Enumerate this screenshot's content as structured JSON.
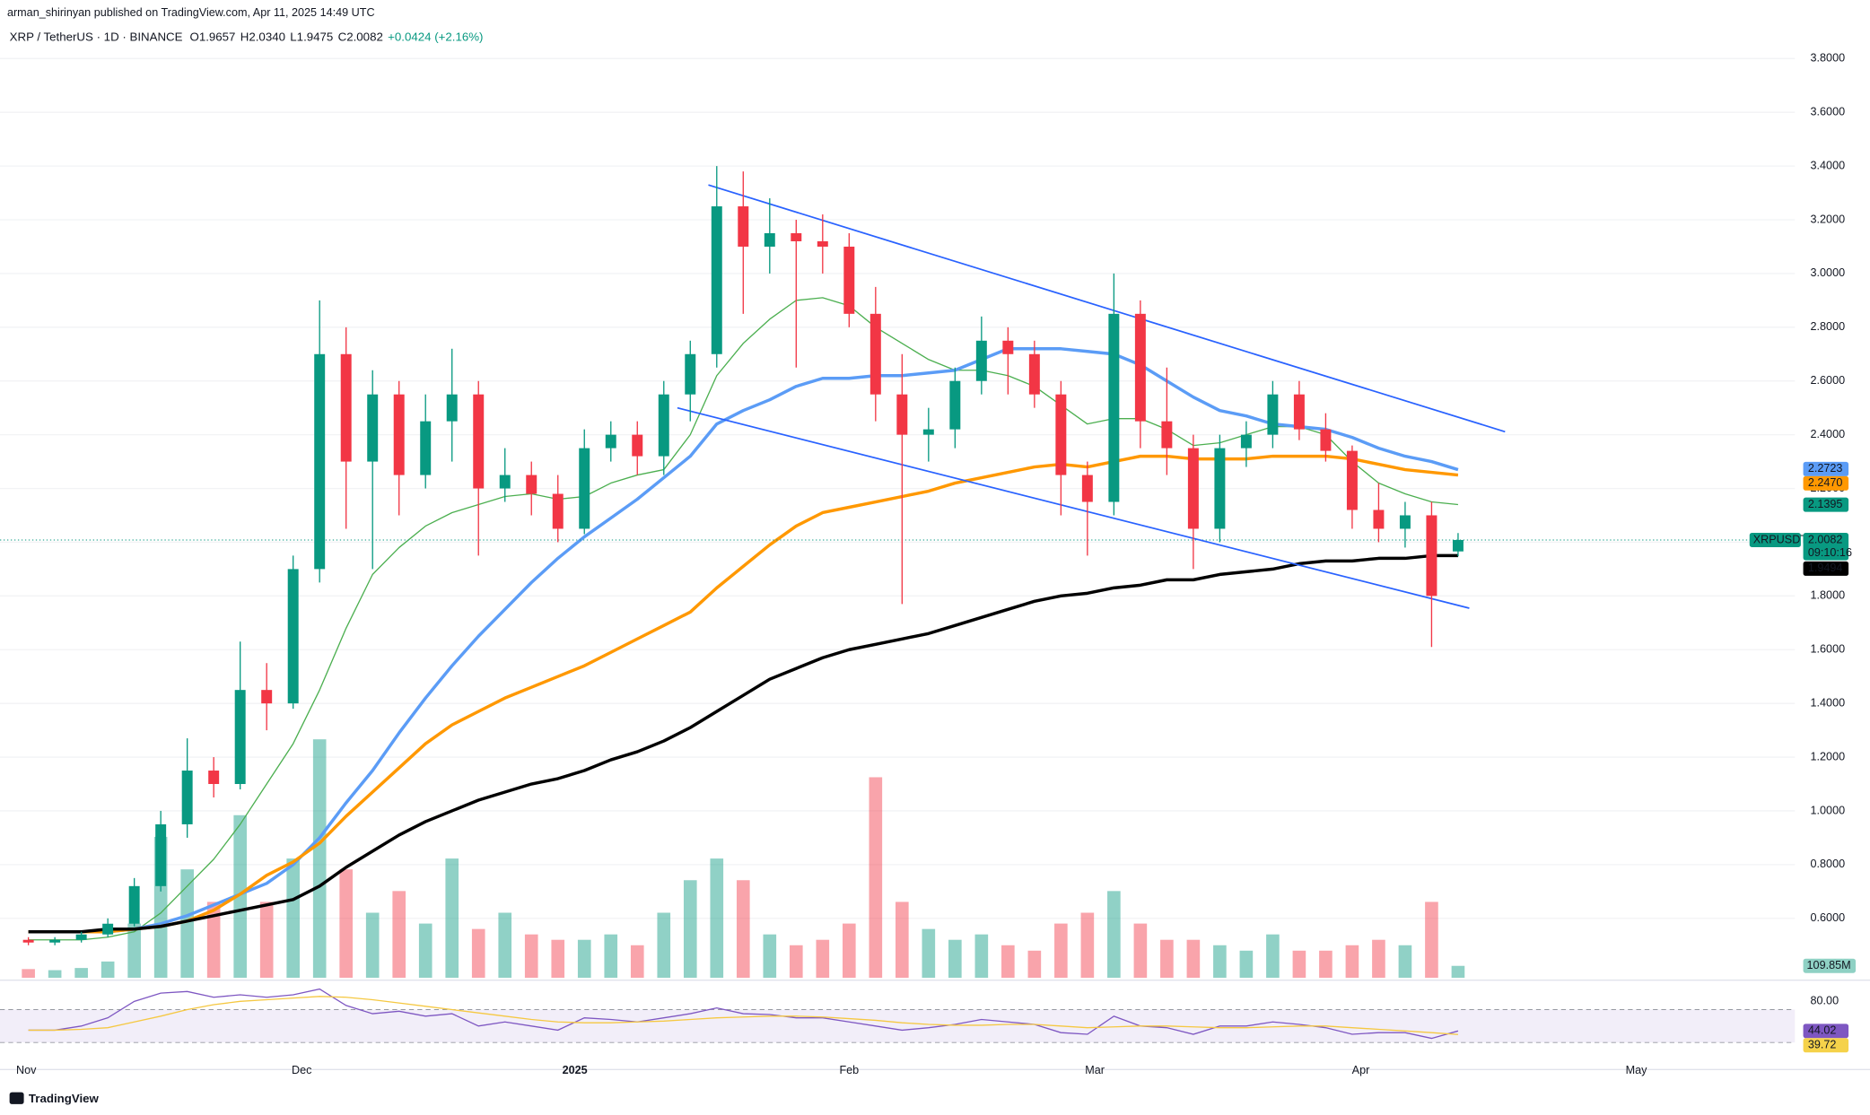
{
  "header": {
    "publisher": "arman_shirinyan published on TradingView.com, Apr 11, 2025 14:49 UTC",
    "footer": "TradingView"
  },
  "chart_data": {
    "type": "candlestick",
    "title": "XRP / TetherUS · 1D · BINANCE",
    "ohlc_labels": [
      "O1.9657",
      "H2.0340",
      "L1.9475",
      "C2.0082"
    ],
    "change": "+0.0424 (+2.16%)",
    "x_labels": [
      "Nov",
      "Dec",
      "2025",
      "Feb",
      "Mar",
      "Apr",
      "May"
    ],
    "up_color": "#089981",
    "down_color": "#f23645",
    "ylim": [
      0.37,
      3.84
    ],
    "yticks": [
      {
        "value": 3.8,
        "label": "3.8000"
      },
      {
        "value": 3.6,
        "label": "3.6000"
      },
      {
        "value": 3.4,
        "label": "3.4000"
      },
      {
        "value": 3.2,
        "label": "3.2000"
      },
      {
        "value": 3.0,
        "label": "3.0000"
      },
      {
        "value": 2.8,
        "label": "2.8000"
      },
      {
        "value": 2.6,
        "label": "2.6000"
      },
      {
        "value": 2.4,
        "label": "2.4000"
      },
      {
        "value": 2.2,
        "label": "2.2000"
      },
      {
        "value": 2.0,
        "label": "2.0000"
      },
      {
        "value": 1.8,
        "label": "1.8000"
      },
      {
        "value": 1.6,
        "label": "1.6000"
      },
      {
        "value": 1.4,
        "label": "1.4000"
      },
      {
        "value": 1.2,
        "label": "1.2000"
      },
      {
        "value": 1.0,
        "label": "1.0000"
      },
      {
        "value": 0.8,
        "label": "0.8000"
      },
      {
        "value": 0.6,
        "label": "0.6000"
      }
    ],
    "grid": true,
    "candles": [
      [
        0.52,
        0.53,
        0.5,
        0.51
      ],
      [
        0.51,
        0.53,
        0.5,
        0.52
      ],
      [
        0.52,
        0.55,
        0.51,
        0.54
      ],
      [
        0.54,
        0.6,
        0.53,
        0.58
      ],
      [
        0.58,
        0.75,
        0.57,
        0.72
      ],
      [
        0.72,
        1.0,
        0.7,
        0.95
      ],
      [
        0.95,
        1.27,
        0.9,
        1.15
      ],
      [
        1.15,
        1.2,
        1.05,
        1.1
      ],
      [
        1.1,
        1.63,
        1.08,
        1.45
      ],
      [
        1.45,
        1.55,
        1.3,
        1.4
      ],
      [
        1.4,
        1.95,
        1.38,
        1.9
      ],
      [
        1.9,
        2.9,
        1.85,
        2.7
      ],
      [
        2.7,
        2.8,
        2.05,
        2.3
      ],
      [
        2.3,
        2.64,
        1.9,
        2.55
      ],
      [
        2.55,
        2.6,
        2.1,
        2.25
      ],
      [
        2.25,
        2.55,
        2.2,
        2.45
      ],
      [
        2.45,
        2.72,
        2.3,
        2.55
      ],
      [
        2.55,
        2.6,
        1.95,
        2.2
      ],
      [
        2.2,
        2.35,
        2.15,
        2.25
      ],
      [
        2.25,
        2.3,
        2.1,
        2.18
      ],
      [
        2.18,
        2.25,
        2.0,
        2.05
      ],
      [
        2.05,
        2.42,
        2.03,
        2.35
      ],
      [
        2.35,
        2.45,
        2.3,
        2.4
      ],
      [
        2.4,
        2.45,
        2.25,
        2.32
      ],
      [
        2.32,
        2.6,
        2.25,
        2.55
      ],
      [
        2.55,
        2.75,
        2.45,
        2.7
      ],
      [
        2.7,
        3.4,
        2.65,
        3.25
      ],
      [
        3.25,
        3.38,
        2.85,
        3.1
      ],
      [
        3.1,
        3.28,
        3.0,
        3.15
      ],
      [
        3.15,
        3.2,
        2.65,
        3.12
      ],
      [
        3.12,
        3.22,
        3.0,
        3.1
      ],
      [
        3.1,
        3.15,
        2.8,
        2.85
      ],
      [
        2.85,
        2.95,
        2.45,
        2.55
      ],
      [
        2.55,
        2.7,
        1.77,
        2.4
      ],
      [
        2.4,
        2.5,
        2.3,
        2.42
      ],
      [
        2.42,
        2.65,
        2.35,
        2.6
      ],
      [
        2.6,
        2.84,
        2.55,
        2.75
      ],
      [
        2.75,
        2.8,
        2.55,
        2.7
      ],
      [
        2.7,
        2.75,
        2.5,
        2.55
      ],
      [
        2.55,
        2.6,
        2.1,
        2.25
      ],
      [
        2.25,
        2.3,
        1.95,
        2.15
      ],
      [
        2.15,
        3.0,
        2.1,
        2.85
      ],
      [
        2.85,
        2.9,
        2.35,
        2.45
      ],
      [
        2.45,
        2.65,
        2.25,
        2.35
      ],
      [
        2.35,
        2.4,
        1.9,
        2.05
      ],
      [
        2.05,
        2.4,
        2.0,
        2.35
      ],
      [
        2.35,
        2.45,
        2.28,
        2.4
      ],
      [
        2.4,
        2.6,
        2.35,
        2.55
      ],
      [
        2.55,
        2.6,
        2.38,
        2.42
      ],
      [
        2.42,
        2.48,
        2.3,
        2.34
      ],
      [
        2.34,
        2.36,
        2.05,
        2.12
      ],
      [
        2.12,
        2.22,
        2.0,
        2.05
      ],
      [
        2.05,
        2.15,
        1.98,
        2.1
      ],
      [
        2.1,
        2.15,
        1.61,
        1.8
      ],
      [
        1.9657,
        2.034,
        1.9475,
        2.0082
      ]
    ],
    "lines": [
      {
        "color": "#4caf50",
        "values": [
          0.52,
          0.52,
          0.52,
          0.53,
          0.55,
          0.62,
          0.72,
          0.82,
          0.95,
          1.1,
          1.25,
          1.45,
          1.68,
          1.88,
          1.98,
          2.06,
          2.11,
          2.14,
          2.17,
          2.18,
          2.16,
          2.17,
          2.22,
          2.25,
          2.27,
          2.4,
          2.62,
          2.74,
          2.83,
          2.9,
          2.91,
          2.88,
          2.8,
          2.74,
          2.68,
          2.64,
          2.64,
          2.62,
          2.58,
          2.51,
          2.44,
          2.46,
          2.46,
          2.42,
          2.36,
          2.37,
          2.4,
          2.43,
          2.43,
          2.4,
          2.3,
          2.22,
          2.18,
          2.15,
          2.14
        ]
      },
      {
        "color": "#5b9cf6",
        "values": [
          0.55,
          0.55,
          0.55,
          0.55,
          0.56,
          0.58,
          0.61,
          0.65,
          0.69,
          0.73,
          0.8,
          0.9,
          1.03,
          1.15,
          1.29,
          1.42,
          1.54,
          1.65,
          1.75,
          1.85,
          1.94,
          2.02,
          2.09,
          2.16,
          2.24,
          2.32,
          2.44,
          2.49,
          2.53,
          2.58,
          2.61,
          2.61,
          2.62,
          2.62,
          2.63,
          2.64,
          2.68,
          2.72,
          2.72,
          2.72,
          2.71,
          2.7,
          2.66,
          2.6,
          2.54,
          2.49,
          2.47,
          2.44,
          2.43,
          2.42,
          2.39,
          2.35,
          2.32,
          2.3,
          2.27
        ]
      },
      {
        "color": "#ff9800",
        "values": [
          0.55,
          0.55,
          0.55,
          0.55,
          0.56,
          0.57,
          0.59,
          0.63,
          0.69,
          0.76,
          0.81,
          0.88,
          0.98,
          1.07,
          1.16,
          1.25,
          1.32,
          1.37,
          1.42,
          1.46,
          1.5,
          1.54,
          1.59,
          1.64,
          1.69,
          1.74,
          1.83,
          1.91,
          1.99,
          2.06,
          2.11,
          2.13,
          2.15,
          2.17,
          2.19,
          2.22,
          2.24,
          2.26,
          2.28,
          2.29,
          2.28,
          2.3,
          2.32,
          2.32,
          2.31,
          2.31,
          2.31,
          2.32,
          2.32,
          2.32,
          2.31,
          2.29,
          2.27,
          2.26,
          2.25
        ]
      },
      {
        "color": "#000000",
        "values": [
          0.55,
          0.55,
          0.55,
          0.56,
          0.56,
          0.57,
          0.59,
          0.61,
          0.63,
          0.65,
          0.67,
          0.72,
          0.79,
          0.85,
          0.91,
          0.96,
          1.0,
          1.04,
          1.07,
          1.1,
          1.12,
          1.15,
          1.19,
          1.22,
          1.26,
          1.31,
          1.37,
          1.43,
          1.49,
          1.53,
          1.57,
          1.6,
          1.62,
          1.64,
          1.66,
          1.69,
          1.72,
          1.75,
          1.78,
          1.8,
          1.81,
          1.83,
          1.84,
          1.86,
          1.86,
          1.88,
          1.89,
          1.9,
          1.92,
          1.93,
          1.93,
          1.94,
          1.94,
          1.95,
          1.95
        ]
      }
    ],
    "badges": [
      {
        "value": 2.2723,
        "label": "2.2723",
        "color": "#5b9cf6"
      },
      {
        "value": 2.247,
        "label": "2.2470",
        "color": "#ff9800"
      },
      {
        "value": 2.1395,
        "label": "2.1395",
        "color": "#089981"
      }
    ],
    "last_price": {
      "symbol": "XRPUSDT",
      "value": 2.0082,
      "label": "2.0082",
      "countdown": "09:10:16",
      "color": "#089981"
    },
    "ma_badge": {
      "value": 1.9494,
      "label": "1.9494",
      "color": "#000000"
    },
    "volume": {
      "values": [
        80,
        70,
        90,
        150,
        500,
        1300,
        1000,
        700,
        1500,
        700,
        1100,
        2200,
        1000,
        600,
        800,
        500,
        1100,
        450,
        600,
        400,
        350,
        350,
        400,
        300,
        600,
        900,
        1100,
        900,
        400,
        300,
        350,
        500,
        1850,
        700,
        450,
        350,
        400,
        300,
        250,
        500,
        600,
        800,
        500,
        350,
        350,
        300,
        250,
        400,
        250,
        250,
        300,
        350,
        300,
        700,
        109.85
      ],
      "ylim": [
        0,
        2200
      ],
      "last_label": "109.85M"
    },
    "rsi": {
      "values": [
        45,
        45,
        50,
        60,
        80,
        90,
        92,
        85,
        88,
        85,
        88,
        95,
        75,
        65,
        68,
        62,
        65,
        50,
        55,
        50,
        45,
        60,
        58,
        55,
        60,
        65,
        72,
        65,
        64,
        60,
        60,
        55,
        50,
        45,
        48,
        52,
        58,
        55,
        52,
        42,
        40,
        62,
        50,
        48,
        40,
        50,
        50,
        55,
        52,
        48,
        40,
        42,
        42,
        35,
        44.02
      ],
      "ma": [
        45,
        45,
        46,
        48,
        55,
        62,
        70,
        76,
        80,
        82,
        84,
        86,
        85,
        82,
        78,
        74,
        70,
        66,
        62,
        58,
        55,
        54,
        54,
        55,
        56,
        58,
        60,
        61,
        62,
        62,
        61,
        59,
        57,
        54,
        52,
        51,
        51,
        52,
        52,
        50,
        48,
        49,
        50,
        50,
        49,
        48,
        48,
        49,
        50,
        50,
        48,
        46,
        44,
        42,
        39.72
      ],
      "ylim": [
        0,
        100
      ],
      "yticks": [
        {
          "value": 80,
          "label": "80.00"
        }
      ],
      "bands": [
        30,
        70
      ],
      "color": "#7e57c2",
      "ma_color": "#f5c842",
      "badges": [
        {
          "value": 44.02,
          "label": "44.02",
          "color": "#7e57c2"
        },
        {
          "value": 39.72,
          "label": "39.72",
          "color": "#f5d24a"
        }
      ]
    }
  }
}
